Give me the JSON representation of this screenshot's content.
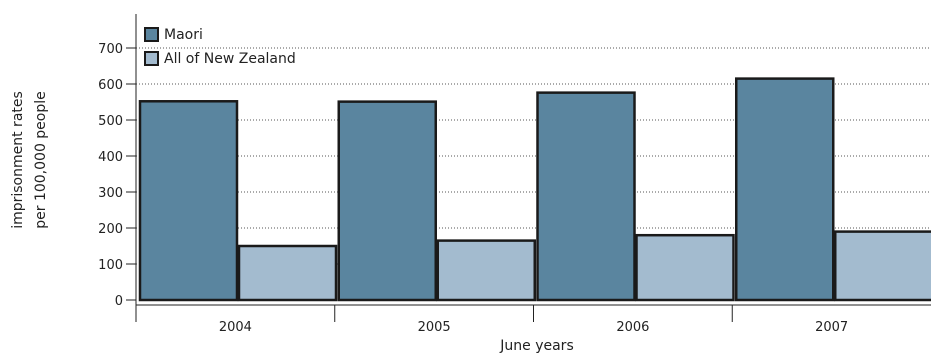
{
  "chart_data": {
    "type": "bar",
    "categories": [
      "2004",
      "2005",
      "2006",
      "2007"
    ],
    "series": [
      {
        "name": "Maori",
        "values": [
          552,
          551,
          576,
          615
        ],
        "color": "#5a859f"
      },
      {
        "name": "All of New Zealand",
        "values": [
          150,
          165,
          180,
          190
        ],
        "color": "#a3bbcf"
      }
    ],
    "xlabel": "June years",
    "ylabel_lines": [
      "imprisonment rates",
      "per 100,000 people"
    ],
    "yticks": [
      0,
      100,
      200,
      300,
      400,
      500,
      600,
      700
    ],
    "ylim": [
      0,
      700
    ],
    "grid": "dotted horizontal",
    "legend_position": "top-left"
  }
}
